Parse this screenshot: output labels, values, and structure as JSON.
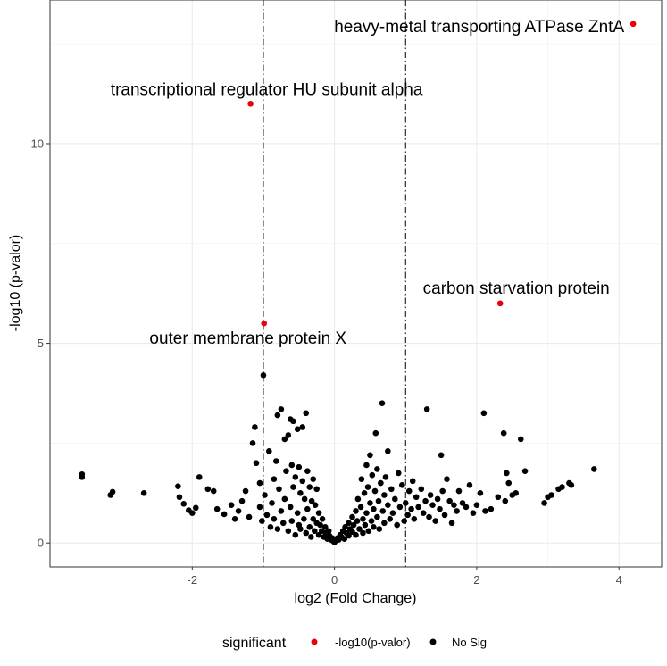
{
  "chart_data": {
    "type": "scatter",
    "title": "",
    "xlabel": "log2 (Fold Change)",
    "ylabel": "-log10 (p-valor)",
    "xlim": [
      -4.0,
      4.6
    ],
    "ylim": [
      -0.6,
      13.6
    ],
    "x_ticks": [
      -2,
      0,
      2,
      4
    ],
    "y_ticks": [
      0,
      5,
      10
    ],
    "grid": true,
    "threshold_lines_x": [
      -1,
      1
    ],
    "legend": {
      "title": "significant",
      "position": "bottom",
      "entries": [
        {
          "label": "-log10(p-valor)",
          "color": "#e8000b"
        },
        {
          "label": "No Sig",
          "color": "#000000"
        }
      ]
    },
    "series": [
      {
        "name": "-log10(p-valor)",
        "color": "#e8000b",
        "points": [
          {
            "x": 4.2,
            "y": 13.0,
            "label": "heavy-metal transporting ATPase ZntA"
          },
          {
            "x": -1.18,
            "y": 11.0,
            "label": "transcriptional regulator HU subunit alpha"
          },
          {
            "x": 2.33,
            "y": 6.0,
            "label": "carbon starvation protein"
          },
          {
            "x": -0.99,
            "y": 5.5,
            "label": "outer membrane protein X"
          }
        ]
      },
      {
        "name": "No Sig",
        "color": "#000000",
        "points": [
          {
            "x": -3.55,
            "y": 1.72
          },
          {
            "x": -3.55,
            "y": 1.65
          },
          {
            "x": -3.15,
            "y": 1.2
          },
          {
            "x": -3.12,
            "y": 1.28
          },
          {
            "x": -2.68,
            "y": 1.25
          },
          {
            "x": -2.2,
            "y": 1.42
          },
          {
            "x": -2.18,
            "y": 1.15
          },
          {
            "x": -2.12,
            "y": 0.98
          },
          {
            "x": -2.05,
            "y": 0.82
          },
          {
            "x": -2.0,
            "y": 0.75
          },
          {
            "x": -1.95,
            "y": 0.88
          },
          {
            "x": -1.9,
            "y": 1.65
          },
          {
            "x": -1.78,
            "y": 1.35
          },
          {
            "x": -1.7,
            "y": 1.3
          },
          {
            "x": -1.65,
            "y": 0.85
          },
          {
            "x": -1.55,
            "y": 0.72
          },
          {
            "x": -1.45,
            "y": 0.95
          },
          {
            "x": -1.4,
            "y": 0.6
          },
          {
            "x": -1.35,
            "y": 0.8
          },
          {
            "x": -1.3,
            "y": 1.05
          },
          {
            "x": -1.25,
            "y": 1.3
          },
          {
            "x": -1.2,
            "y": 0.65
          },
          {
            "x": -1.15,
            "y": 2.5
          },
          {
            "x": -1.12,
            "y": 2.9
          },
          {
            "x": -1.1,
            "y": 2.0
          },
          {
            "x": -1.05,
            "y": 1.5
          },
          {
            "x": -1.05,
            "y": 0.9
          },
          {
            "x": -1.02,
            "y": 0.55
          },
          {
            "x": -1.0,
            "y": 4.2
          },
          {
            "x": -0.98,
            "y": 1.2
          },
          {
            "x": -0.95,
            "y": 0.7
          },
          {
            "x": -0.92,
            "y": 2.3
          },
          {
            "x": -0.9,
            "y": 0.4
          },
          {
            "x": -0.88,
            "y": 1.0
          },
          {
            "x": -0.85,
            "y": 1.6
          },
          {
            "x": -0.85,
            "y": 0.6
          },
          {
            "x": -0.82,
            "y": 2.05
          },
          {
            "x": -0.8,
            "y": 3.2
          },
          {
            "x": -0.8,
            "y": 0.35
          },
          {
            "x": -0.78,
            "y": 1.35
          },
          {
            "x": -0.75,
            "y": 3.35
          },
          {
            "x": -0.75,
            "y": 0.8
          },
          {
            "x": -0.72,
            "y": 0.5
          },
          {
            "x": -0.7,
            "y": 2.6
          },
          {
            "x": -0.7,
            "y": 1.1
          },
          {
            "x": -0.68,
            "y": 1.8
          },
          {
            "x": -0.65,
            "y": 2.7
          },
          {
            "x": -0.65,
            "y": 0.3
          },
          {
            "x": -0.62,
            "y": 3.1
          },
          {
            "x": -0.62,
            "y": 0.9
          },
          {
            "x": -0.6,
            "y": 1.95
          },
          {
            "x": -0.6,
            "y": 0.55
          },
          {
            "x": -0.58,
            "y": 3.05
          },
          {
            "x": -0.58,
            "y": 1.4
          },
          {
            "x": -0.55,
            "y": 0.2
          },
          {
            "x": -0.55,
            "y": 1.65
          },
          {
            "x": -0.52,
            "y": 2.85
          },
          {
            "x": -0.52,
            "y": 0.75
          },
          {
            "x": -0.5,
            "y": 1.9
          },
          {
            "x": -0.5,
            "y": 0.45
          },
          {
            "x": -0.48,
            "y": 1.25
          },
          {
            "x": -0.48,
            "y": 0.35
          },
          {
            "x": -0.45,
            "y": 2.9
          },
          {
            "x": -0.45,
            "y": 1.55
          },
          {
            "x": -0.43,
            "y": 0.6
          },
          {
            "x": -0.42,
            "y": 1.1
          },
          {
            "x": -0.4,
            "y": 3.25
          },
          {
            "x": -0.4,
            "y": 0.25
          },
          {
            "x": -0.38,
            "y": 1.8
          },
          {
            "x": -0.38,
            "y": 0.85
          },
          {
            "x": -0.35,
            "y": 1.4
          },
          {
            "x": -0.35,
            "y": 0.4
          },
          {
            "x": -0.33,
            "y": 0.15
          },
          {
            "x": -0.32,
            "y": 1.05
          },
          {
            "x": -0.3,
            "y": 1.6
          },
          {
            "x": -0.3,
            "y": 0.6
          },
          {
            "x": -0.28,
            "y": 0.3
          },
          {
            "x": -0.27,
            "y": 0.95
          },
          {
            "x": -0.25,
            "y": 1.35
          },
          {
            "x": -0.25,
            "y": 0.5
          },
          {
            "x": -0.22,
            "y": 0.2
          },
          {
            "x": -0.22,
            "y": 0.75
          },
          {
            "x": -0.2,
            "y": 0.45
          },
          {
            "x": -0.18,
            "y": 0.3
          },
          {
            "x": -0.17,
            "y": 0.6
          },
          {
            "x": -0.15,
            "y": 0.15
          },
          {
            "x": -0.13,
            "y": 0.4
          },
          {
            "x": -0.12,
            "y": 0.25
          },
          {
            "x": -0.1,
            "y": 0.1
          },
          {
            "x": -0.08,
            "y": 0.3
          },
          {
            "x": -0.07,
            "y": 0.18
          },
          {
            "x": -0.05,
            "y": 0.08
          },
          {
            "x": -0.03,
            "y": 0.12
          },
          {
            "x": -0.02,
            "y": 0.05
          },
          {
            "x": 0.0,
            "y": 0.02
          },
          {
            "x": 0.02,
            "y": 0.06
          },
          {
            "x": 0.04,
            "y": 0.12
          },
          {
            "x": 0.06,
            "y": 0.08
          },
          {
            "x": 0.08,
            "y": 0.2
          },
          {
            "x": 0.1,
            "y": 0.15
          },
          {
            "x": 0.12,
            "y": 0.3
          },
          {
            "x": 0.14,
            "y": 0.1
          },
          {
            "x": 0.15,
            "y": 0.4
          },
          {
            "x": 0.17,
            "y": 0.25
          },
          {
            "x": 0.2,
            "y": 0.5
          },
          {
            "x": 0.2,
            "y": 0.18
          },
          {
            "x": 0.22,
            "y": 0.35
          },
          {
            "x": 0.25,
            "y": 0.65
          },
          {
            "x": 0.25,
            "y": 0.28
          },
          {
            "x": 0.27,
            "y": 0.45
          },
          {
            "x": 0.3,
            "y": 0.8
          },
          {
            "x": 0.3,
            "y": 0.2
          },
          {
            "x": 0.32,
            "y": 0.55
          },
          {
            "x": 0.33,
            "y": 1.1
          },
          {
            "x": 0.35,
            "y": 0.35
          },
          {
            "x": 0.37,
            "y": 0.9
          },
          {
            "x": 0.38,
            "y": 1.6
          },
          {
            "x": 0.4,
            "y": 0.6
          },
          {
            "x": 0.4,
            "y": 0.25
          },
          {
            "x": 0.42,
            "y": 1.25
          },
          {
            "x": 0.43,
            "y": 0.45
          },
          {
            "x": 0.45,
            "y": 1.95
          },
          {
            "x": 0.45,
            "y": 0.75
          },
          {
            "x": 0.47,
            "y": 1.4
          },
          {
            "x": 0.48,
            "y": 0.3
          },
          {
            "x": 0.5,
            "y": 1.0
          },
          {
            "x": 0.5,
            "y": 2.2
          },
          {
            "x": 0.52,
            "y": 0.55
          },
          {
            "x": 0.53,
            "y": 1.7
          },
          {
            "x": 0.55,
            "y": 0.85
          },
          {
            "x": 0.55,
            "y": 0.4
          },
          {
            "x": 0.57,
            "y": 1.3
          },
          {
            "x": 0.58,
            "y": 2.75
          },
          {
            "x": 0.6,
            "y": 0.65
          },
          {
            "x": 0.6,
            "y": 1.85
          },
          {
            "x": 0.62,
            "y": 1.05
          },
          {
            "x": 0.63,
            "y": 0.35
          },
          {
            "x": 0.65,
            "y": 1.5
          },
          {
            "x": 0.67,
            "y": 3.5
          },
          {
            "x": 0.68,
            "y": 0.8
          },
          {
            "x": 0.7,
            "y": 1.2
          },
          {
            "x": 0.7,
            "y": 0.5
          },
          {
            "x": 0.72,
            "y": 1.65
          },
          {
            "x": 0.75,
            "y": 2.3
          },
          {
            "x": 0.75,
            "y": 0.95
          },
          {
            "x": 0.78,
            "y": 0.6
          },
          {
            "x": 0.8,
            "y": 1.35
          },
          {
            "x": 0.82,
            "y": 0.75
          },
          {
            "x": 0.85,
            "y": 1.1
          },
          {
            "x": 0.88,
            "y": 0.45
          },
          {
            "x": 0.9,
            "y": 1.75
          },
          {
            "x": 0.92,
            "y": 0.9
          },
          {
            "x": 0.95,
            "y": 1.45
          },
          {
            "x": 0.98,
            "y": 0.55
          },
          {
            "x": 1.0,
            "y": 1.0
          },
          {
            "x": 1.03,
            "y": 0.7
          },
          {
            "x": 1.05,
            "y": 1.3
          },
          {
            "x": 1.08,
            "y": 0.85
          },
          {
            "x": 1.1,
            "y": 1.55
          },
          {
            "x": 1.12,
            "y": 0.6
          },
          {
            "x": 1.15,
            "y": 1.15
          },
          {
            "x": 1.18,
            "y": 0.9
          },
          {
            "x": 1.22,
            "y": 1.35
          },
          {
            "x": 1.25,
            "y": 0.75
          },
          {
            "x": 1.28,
            "y": 1.05
          },
          {
            "x": 1.3,
            "y": 3.35
          },
          {
            "x": 1.33,
            "y": 0.65
          },
          {
            "x": 1.35,
            "y": 1.2
          },
          {
            "x": 1.38,
            "y": 0.95
          },
          {
            "x": 1.42,
            "y": 0.55
          },
          {
            "x": 1.45,
            "y": 1.1
          },
          {
            "x": 1.48,
            "y": 0.85
          },
          {
            "x": 1.5,
            "y": 2.2
          },
          {
            "x": 1.52,
            "y": 1.3
          },
          {
            "x": 1.55,
            "y": 0.7
          },
          {
            "x": 1.58,
            "y": 1.6
          },
          {
            "x": 1.62,
            "y": 1.05
          },
          {
            "x": 1.65,
            "y": 0.5
          },
          {
            "x": 1.68,
            "y": 0.95
          },
          {
            "x": 1.72,
            "y": 0.8
          },
          {
            "x": 1.75,
            "y": 1.3
          },
          {
            "x": 1.8,
            "y": 1.0
          },
          {
            "x": 1.85,
            "y": 0.9
          },
          {
            "x": 1.9,
            "y": 1.45
          },
          {
            "x": 1.95,
            "y": 0.75
          },
          {
            "x": 2.0,
            "y": 0.95
          },
          {
            "x": 2.05,
            "y": 1.25
          },
          {
            "x": 2.1,
            "y": 3.25
          },
          {
            "x": 2.12,
            "y": 0.8
          },
          {
            "x": 2.2,
            "y": 0.85
          },
          {
            "x": 2.3,
            "y": 1.15
          },
          {
            "x": 2.38,
            "y": 2.75
          },
          {
            "x": 2.4,
            "y": 1.05
          },
          {
            "x": 2.42,
            "y": 1.75
          },
          {
            "x": 2.45,
            "y": 1.5
          },
          {
            "x": 2.5,
            "y": 1.2
          },
          {
            "x": 2.55,
            "y": 1.25
          },
          {
            "x": 2.62,
            "y": 2.6
          },
          {
            "x": 2.68,
            "y": 1.8
          },
          {
            "x": 2.95,
            "y": 1.0
          },
          {
            "x": 3.0,
            "y": 1.15
          },
          {
            "x": 3.05,
            "y": 1.2
          },
          {
            "x": 3.15,
            "y": 1.35
          },
          {
            "x": 3.2,
            "y": 1.4
          },
          {
            "x": 3.3,
            "y": 1.5
          },
          {
            "x": 3.33,
            "y": 1.45
          },
          {
            "x": 3.65,
            "y": 1.85
          }
        ]
      }
    ]
  }
}
